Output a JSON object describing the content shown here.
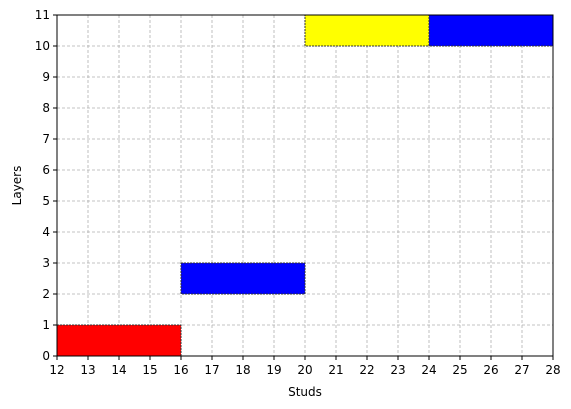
{
  "chart_data": {
    "type": "bar",
    "orientation": "horizontal-intervals",
    "xlabel": "Studs",
    "ylabel": "Layers",
    "xlim": [
      12,
      28
    ],
    "ylim": [
      0,
      11
    ],
    "xticks": [
      12,
      13,
      14,
      15,
      16,
      17,
      18,
      19,
      20,
      21,
      22,
      23,
      24,
      25,
      26,
      27,
      28
    ],
    "yticks": [
      0,
      1,
      2,
      3,
      4,
      5,
      6,
      7,
      8,
      9,
      10,
      11
    ],
    "grid": true,
    "bricks": [
      {
        "x_start": 12,
        "x_end": 16,
        "y_start": 0,
        "y_end": 1,
        "color": "#ff0000"
      },
      {
        "x_start": 16,
        "x_end": 20,
        "y_start": 2,
        "y_end": 3,
        "color": "#0000ff"
      },
      {
        "x_start": 20,
        "x_end": 24,
        "y_start": 10,
        "y_end": 11,
        "color": "#ffff00"
      },
      {
        "x_start": 24,
        "x_end": 28,
        "y_start": 10,
        "y_end": 11,
        "color": "#0000ff"
      }
    ]
  }
}
